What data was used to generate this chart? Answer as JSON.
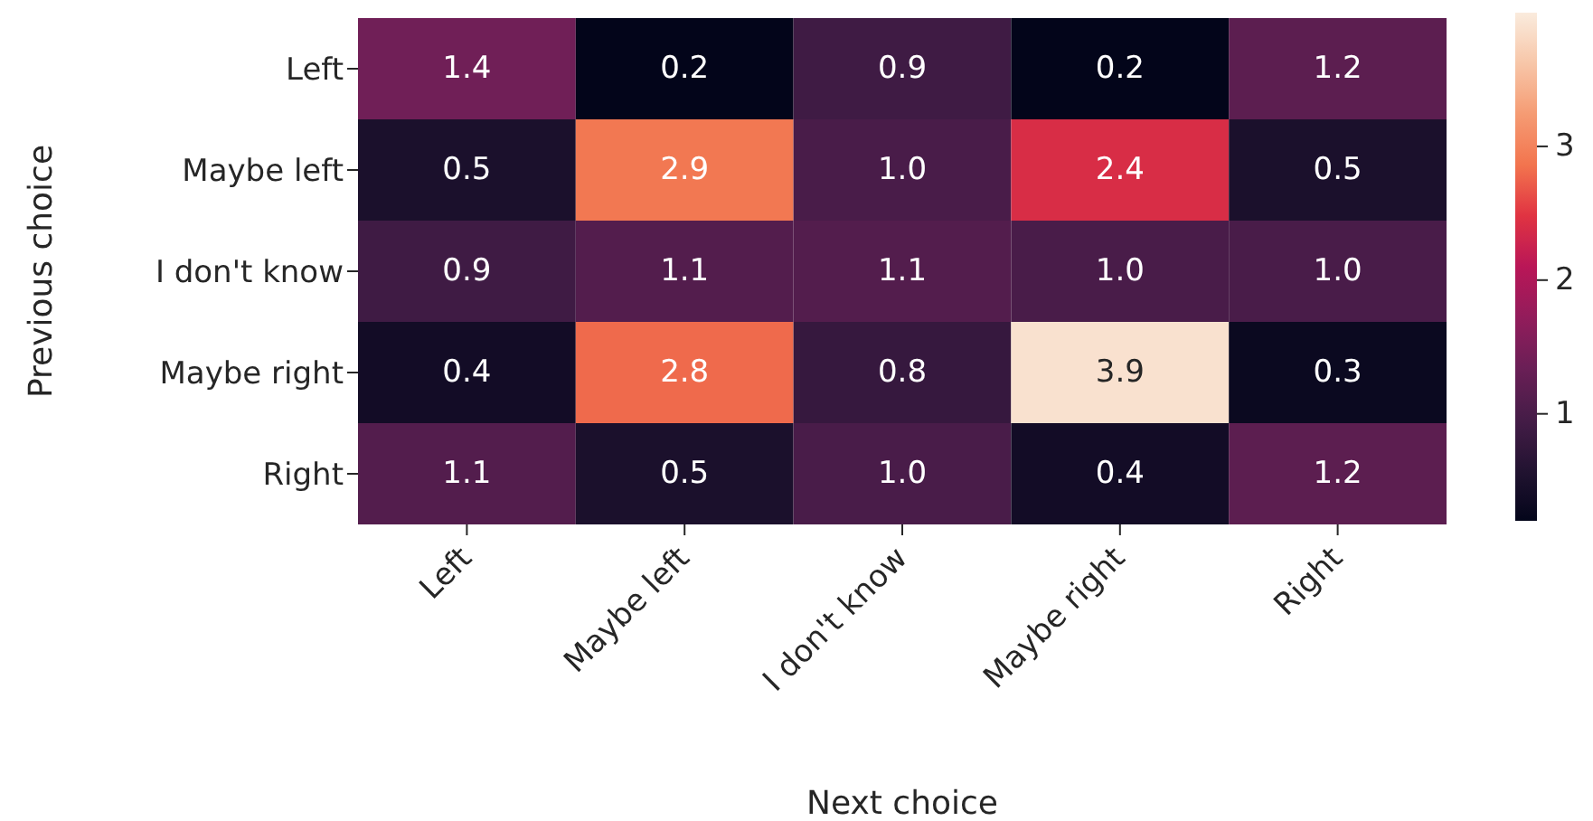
{
  "chart_data": {
    "type": "heatmap",
    "xlabel": "Next choice",
    "ylabel": "Previous choice",
    "categories": [
      "Left",
      "Maybe left",
      "I don't know",
      "Maybe right",
      "Right"
    ],
    "y_categories": [
      "Left",
      "Maybe left",
      "I don't know",
      "Maybe right",
      "Right"
    ],
    "cells": [
      [
        1.4,
        0.2,
        0.9,
        0.2,
        1.2
      ],
      [
        0.5,
        2.9,
        1.0,
        2.4,
        0.5
      ],
      [
        0.9,
        1.1,
        1.1,
        1.0,
        1.0
      ],
      [
        0.4,
        2.8,
        0.8,
        3.9,
        0.3
      ],
      [
        1.1,
        0.5,
        1.0,
        0.4,
        1.2
      ]
    ],
    "cell_labels": [
      [
        "1.4",
        "0.2",
        "0.9",
        "0.2",
        "1.2"
      ],
      [
        "0.5",
        "2.9",
        "1.0",
        "2.4",
        "0.5"
      ],
      [
        "0.9",
        "1.1",
        "1.1",
        "1.0",
        "1.0"
      ],
      [
        "0.4",
        "2.8",
        "0.8",
        "3.9",
        "0.3"
      ],
      [
        "1.1",
        "0.5",
        "1.0",
        "0.4",
        "1.2"
      ]
    ],
    "data_labels": true,
    "clim": [
      0.2,
      4.0
    ],
    "cticks": [
      1,
      2,
      3
    ]
  }
}
